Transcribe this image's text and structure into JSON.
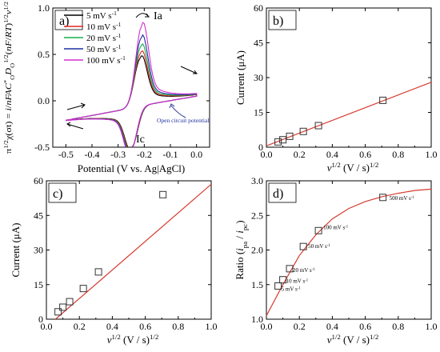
{
  "chart_data": [
    {
      "panel": "a)",
      "type": "line",
      "xlabel": "Potential (V vs. Ag|AgCl)",
      "ylabel": "π^1/2 χ(σt) = i/nFAC*_O D_O^1/2 (nF/RT)^1/2 v^1/2",
      "xlim": [
        -0.55,
        0.05
      ],
      "ylim": [
        -0.5,
        1.0
      ],
      "xticks": [
        "-0.5",
        "-0.4",
        "-0.3",
        "-0.2",
        "-0.1",
        "0.0"
      ],
      "yticks": [
        "-0.5",
        "0.0",
        "0.5",
        "1.0"
      ],
      "legend_position": "top-left",
      "peak_labels": [
        "Ia",
        "Ic"
      ],
      "annotation": "Open circuit potential",
      "series": [
        {
          "name": "5 mV s-1",
          "color": "#000000",
          "anodic_peak": 0.52,
          "cathodic_peak": -0.43,
          "ox_peak_pos": -0.215,
          "red_peak_pos": -0.248
        },
        {
          "name": "10 mV s-1",
          "color": "#e0261f",
          "anodic_peak": 0.57,
          "cathodic_peak": -0.44,
          "ox_peak_pos": -0.214,
          "red_peak_pos": -0.249
        },
        {
          "name": "20 mV s-1",
          "color": "#18b04a",
          "anodic_peak": 0.64,
          "cathodic_peak": -0.45,
          "ox_peak_pos": -0.213,
          "red_peak_pos": -0.25
        },
        {
          "name": "50 mV s-1",
          "color": "#1f2f9e",
          "anodic_peak": 0.73,
          "cathodic_peak": -0.46,
          "ox_peak_pos": -0.212,
          "red_peak_pos": -0.251
        },
        {
          "name": "100 mV s-1",
          "color": "#d42fd0",
          "anodic_peak": 0.86,
          "cathodic_peak": -0.47,
          "ox_peak_pos": -0.21,
          "red_peak_pos": -0.252
        }
      ]
    },
    {
      "panel": "b)",
      "type": "scatter",
      "xlabel": "v^1/2 (V / s)^1/2",
      "ylabel": "Current (μA)",
      "xlim": [
        0.0,
        1.0
      ],
      "ylim": [
        0,
        60
      ],
      "xticks": [
        "0.0",
        "0.2",
        "0.4",
        "0.6",
        "0.8",
        "1.0"
      ],
      "yticks": [
        "0",
        "15",
        "30",
        "45",
        "60"
      ],
      "x": [
        0.071,
        0.1,
        0.141,
        0.224,
        0.316,
        0.707
      ],
      "y": [
        2.3,
        3.2,
        4.7,
        6.8,
        9.3,
        20.2
      ],
      "fit_line": {
        "x": [
          0.0,
          1.0
        ],
        "y": [
          0.6,
          28.0
        ]
      }
    },
    {
      "panel": "c)",
      "type": "scatter",
      "xlabel": "v^1/2 (V / s)^1/2",
      "ylabel": "Current (μA)",
      "xlim": [
        0.0,
        1.0
      ],
      "ylim": [
        0,
        60
      ],
      "xticks": [
        "0.0",
        "0.2",
        "0.4",
        "0.6",
        "0.8",
        "1.0"
      ],
      "yticks": [
        "0",
        "15",
        "30",
        "45",
        "60"
      ],
      "x": [
        0.071,
        0.1,
        0.141,
        0.224,
        0.316,
        0.707
      ],
      "y": [
        3.2,
        5.2,
        7.6,
        13.3,
        20.5,
        54.0
      ],
      "fit_line": {
        "x": [
          0.055,
          1.0
        ],
        "y": [
          0.0,
          58.5
        ]
      }
    },
    {
      "panel": "d)",
      "type": "scatter",
      "xlabel": "v^1/2 (V / s)^1/2",
      "ylabel": "Ratio (i_pa / i_pc)",
      "xlim": [
        0.0,
        1.0
      ],
      "ylim": [
        1.0,
        3.0
      ],
      "xticks": [
        "0.0",
        "0.2",
        "0.4",
        "0.6",
        "0.8",
        "1.0"
      ],
      "yticks": [
        "1.0",
        "1.5",
        "2.0",
        "2.5",
        "3.0"
      ],
      "x": [
        0.071,
        0.1,
        0.141,
        0.224,
        0.316,
        0.707
      ],
      "y": [
        1.48,
        1.57,
        1.73,
        2.05,
        2.28,
        2.76
      ],
      "point_labels": [
        "5 mV s-1",
        "10 mV s-1",
        "20 mV s-1",
        "50 mV s-1",
        "100 mV s-1",
        "500 mV s-1"
      ],
      "fit_curve": {
        "x": [
          0.0,
          0.1,
          0.2,
          0.3,
          0.4,
          0.5,
          0.6,
          0.7,
          0.8,
          0.9,
          1.0
        ],
        "y": [
          1.05,
          1.5,
          1.92,
          2.22,
          2.45,
          2.6,
          2.7,
          2.77,
          2.82,
          2.86,
          2.88
        ]
      }
    }
  ]
}
